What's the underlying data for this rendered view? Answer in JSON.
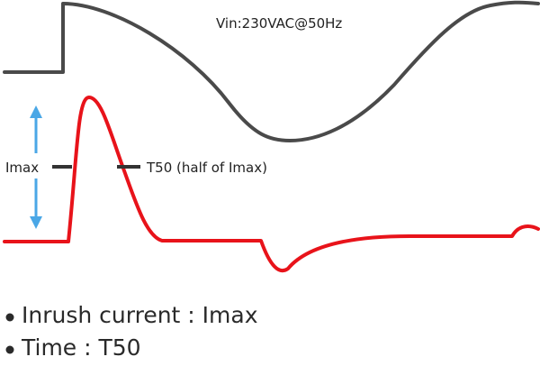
{
  "vin_label": "Vin:230VAC@50Hz",
  "imax_label": "Imax",
  "t50_label": "T50 (half of Imax)",
  "bullets": [
    "Inrush current : Imax",
    "Time : T50"
  ],
  "colors": {
    "voltage": "#4a4a4a",
    "current": "#e8131a",
    "arrow": "#4aa7e6",
    "marker": "#333333",
    "text": "#2a2a2a"
  }
}
